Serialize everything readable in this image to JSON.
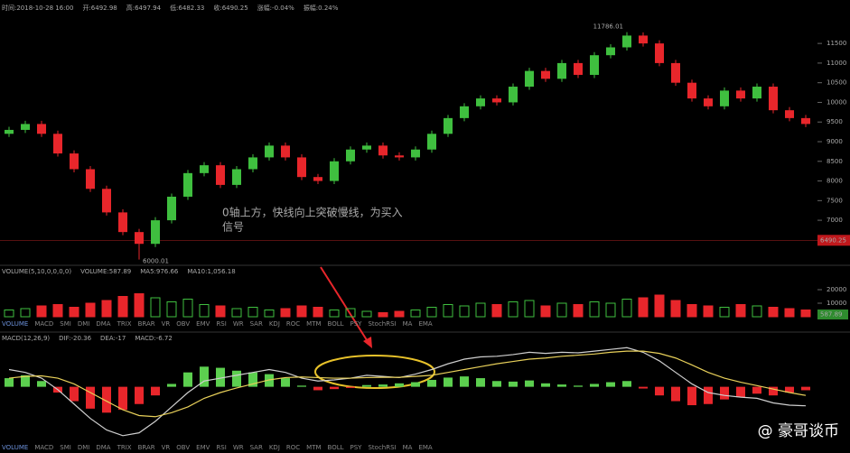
{
  "info_bar": [
    "时间:2018-10-28 16:00",
    "开:6492.98",
    "高:6497.94",
    "低:6482.33",
    "收:6490.25",
    "涨幅:-0.04%",
    "振幅:0.24%"
  ],
  "tabs": [
    "VOLUME",
    "MACD",
    "SMI",
    "DMI",
    "DMA",
    "TRIX",
    "BRAR",
    "VR",
    "OBV",
    "EMV",
    "RSI",
    "WR",
    "SAR",
    "KDJ",
    "ROC",
    "MTM",
    "BOLL",
    "PSY",
    "StochRSI",
    "MA",
    "EMA"
  ],
  "watermark": "@ 豪哥谈币",
  "chart_data": [
    {
      "type": "candlestick",
      "up_color": "#3fbf3f",
      "down_color": "#e8262b",
      "open": [
        9200,
        9300,
        9450,
        9200,
        8700,
        8300,
        7800,
        7200,
        6700,
        6400,
        7000,
        7600,
        8200,
        8400,
        7900,
        8300,
        8600,
        8900,
        8600,
        8100,
        8000,
        8500,
        8800,
        8900,
        8650,
        8600,
        8800,
        9200,
        9600,
        9900,
        10100,
        10000,
        10400,
        10800,
        10600,
        11000,
        10700,
        11200,
        11400,
        11700,
        11500,
        11000,
        10500,
        10100,
        9900,
        10300,
        10100,
        10400,
        9800,
        9600
      ],
      "high": [
        9380,
        9530,
        9530,
        9280,
        8780,
        8380,
        7880,
        7280,
        6780,
        7080,
        7680,
        8280,
        8480,
        8480,
        8380,
        8680,
        8980,
        8980,
        8680,
        8180,
        8580,
        8880,
        8980,
        8980,
        8730,
        8880,
        9280,
        9680,
        9980,
        10180,
        10180,
        10480,
        10880,
        10880,
        11080,
        11080,
        11280,
        11480,
        11786.01,
        11780,
        11580,
        11080,
        10580,
        10180,
        10380,
        10380,
        10480,
        10480,
        9880,
        9680
      ],
      "low": [
        9120,
        9220,
        9120,
        8620,
        8220,
        7720,
        7120,
        6620,
        6000.01,
        6320,
        6920,
        7520,
        8120,
        7820,
        7820,
        8220,
        8520,
        8520,
        8020,
        7920,
        7920,
        8420,
        8720,
        8570,
        8520,
        8520,
        8720,
        9120,
        9520,
        9820,
        9920,
        9920,
        10320,
        10520,
        10520,
        10620,
        10620,
        11120,
        11320,
        11420,
        10920,
        10420,
        10020,
        9820,
        9820,
        10020,
        10020,
        9720,
        9520,
        9370
      ],
      "close": [
        9300,
        9450,
        9200,
        8700,
        8300,
        7800,
        7200,
        6700,
        6400,
        7000,
        7600,
        8200,
        8400,
        7900,
        8300,
        8600,
        8900,
        8600,
        8100,
        8000,
        8500,
        8800,
        8900,
        8650,
        8600,
        8800,
        9200,
        9600,
        9900,
        10100,
        10000,
        10400,
        10800,
        10600,
        11000,
        10700,
        11200,
        11400,
        11700,
        11500,
        11000,
        10500,
        10100,
        9900,
        10300,
        10100,
        10400,
        9800,
        9600,
        9450
      ],
      "ylim": [
        5900,
        12100
      ],
      "yticks": [
        7000,
        7500,
        8000,
        8500,
        9000,
        9500,
        10000,
        10500,
        11000,
        11500
      ],
      "current_price": 6490.25,
      "annotation": [
        "0轴上方，快线向上突破慢线，为买入",
        "信号"
      ]
    },
    {
      "type": "bar",
      "up_color": "#3fbf3f",
      "down_color": "#e8262b",
      "legend": [
        "VOLUME(5,10,0,0,0,0)",
        "VOLUME:587.89",
        "MA5:976.66",
        "MA10:1,056.18"
      ],
      "legend_colors": [
        "#ccc",
        "#ccc",
        "#ccc",
        "#e8d05a"
      ],
      "values": [
        5000,
        6000,
        8000,
        9000,
        7000,
        10000,
        12000,
        15000,
        17000,
        14000,
        11000,
        13000,
        9000,
        8000,
        6000,
        7000,
        5000,
        6000,
        8000,
        7000,
        5000,
        6000,
        4000,
        3000,
        4000,
        5000,
        7000,
        9000,
        8000,
        10000,
        9000,
        11000,
        12000,
        8000,
        10000,
        9000,
        11000,
        10000,
        13000,
        14000,
        16000,
        12000,
        9000,
        8000,
        7000,
        9000,
        8000,
        7000,
        6000,
        5000
      ],
      "ylim": [
        0,
        26000
      ],
      "yticks": [
        10000,
        20000
      ],
      "current": "587.89"
    },
    {
      "type": "macd",
      "up_color": "#5ccf4f",
      "down_color": "#e8262b",
      "legend": [
        "MACD(12,26,9)",
        "DIF:-20.36",
        "DEA:-17",
        "MACD:-6.72"
      ],
      "legend_colors": [
        "#ccc",
        "#ddd",
        "#e8d05a",
        "#b05ad8"
      ],
      "histogram": [
        150,
        200,
        100,
        -100,
        -250,
        -380,
        -450,
        -400,
        -300,
        -150,
        50,
        250,
        350,
        330,
        280,
        250,
        220,
        150,
        20,
        -60,
        -40,
        -20,
        30,
        40,
        60,
        80,
        120,
        160,
        180,
        150,
        100,
        90,
        110,
        60,
        40,
        20,
        50,
        80,
        100,
        -30,
        -150,
        -250,
        -320,
        -300,
        -220,
        -180,
        -120,
        -150,
        -100,
        -60
      ],
      "series": [
        {
          "color": "#cfcfcf",
          "values": [
            300,
            250,
            150,
            -50,
            -300,
            -550,
            -750,
            -850,
            -800,
            -600,
            -350,
            -100,
            100,
            150,
            200,
            250,
            300,
            250,
            150,
            100,
            120,
            150,
            200,
            180,
            160,
            220,
            300,
            400,
            480,
            520,
            530,
            560,
            600,
            580,
            600,
            590,
            620,
            650,
            680,
            600,
            450,
            250,
            50,
            -100,
            -150,
            -180,
            -200,
            -280,
            -320,
            -330
          ]
        },
        {
          "color": "#e8d05a",
          "values": [
            150,
            180,
            190,
            150,
            50,
            -100,
            -250,
            -400,
            -500,
            -520,
            -450,
            -350,
            -200,
            -100,
            -20,
            50,
            120,
            160,
            170,
            160,
            150,
            150,
            160,
            165,
            165,
            180,
            200,
            250,
            300,
            350,
            400,
            440,
            480,
            500,
            530,
            550,
            570,
            600,
            620,
            620,
            580,
            500,
            380,
            250,
            150,
            80,
            20,
            -40,
            -100,
            -150
          ]
        }
      ],
      "ylim": [
        -900,
        700
      ]
    }
  ]
}
